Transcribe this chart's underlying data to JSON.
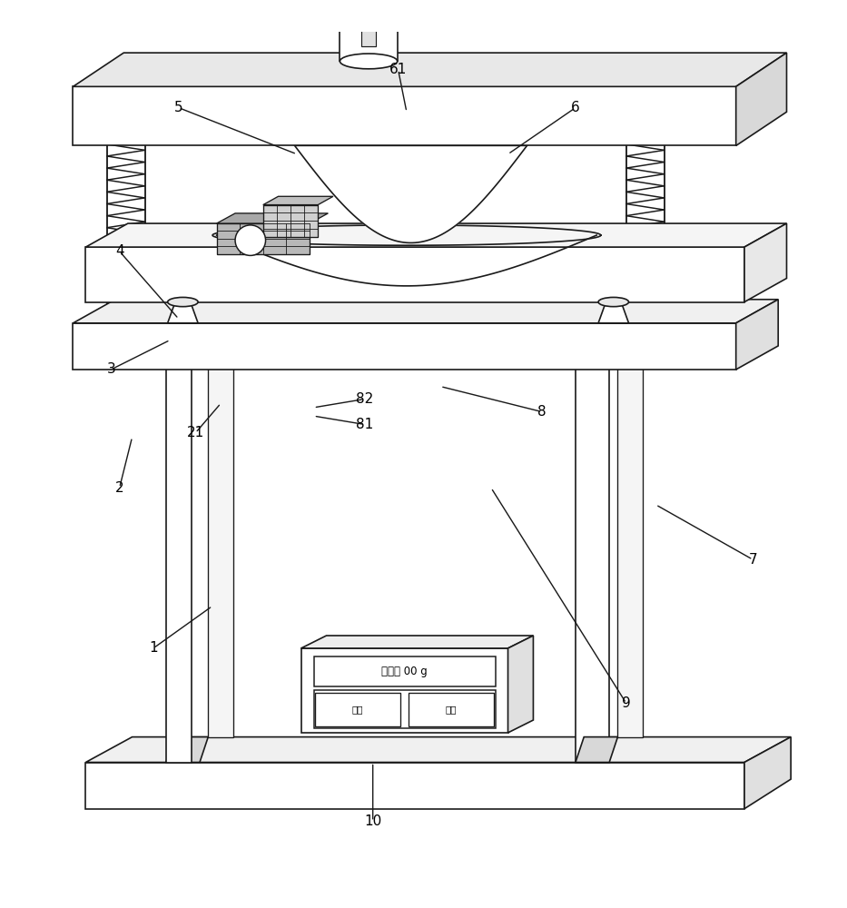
{
  "bg_color": "#ffffff",
  "line_color": "#1a1a1a",
  "line_width": 1.2,
  "display_text": {
    "pressure_line1": "压力： 00 g",
    "button_left": "上升",
    "button_right": "下降"
  },
  "annotations": [
    [
      "1",
      [
        0.18,
        0.27
      ],
      [
        0.25,
        0.32
      ]
    ],
    [
      "2",
      [
        0.14,
        0.46
      ],
      [
        0.155,
        0.52
      ]
    ],
    [
      "3",
      [
        0.13,
        0.6
      ],
      [
        0.2,
        0.635
      ]
    ],
    [
      "4",
      [
        0.14,
        0.74
      ],
      [
        0.21,
        0.66
      ]
    ],
    [
      "5",
      [
        0.21,
        0.91
      ],
      [
        0.35,
        0.855
      ]
    ],
    [
      "6",
      [
        0.68,
        0.91
      ],
      [
        0.6,
        0.855
      ]
    ],
    [
      "61",
      [
        0.47,
        0.955
      ],
      [
        0.48,
        0.905
      ]
    ],
    [
      "7",
      [
        0.89,
        0.375
      ],
      [
        0.775,
        0.44
      ]
    ],
    [
      "8",
      [
        0.64,
        0.55
      ],
      [
        0.52,
        0.58
      ]
    ],
    [
      "81",
      [
        0.43,
        0.535
      ],
      [
        0.37,
        0.545
      ]
    ],
    [
      "82",
      [
        0.43,
        0.565
      ],
      [
        0.37,
        0.555
      ]
    ],
    [
      "9",
      [
        0.74,
        0.205
      ],
      [
        0.58,
        0.46
      ]
    ],
    [
      "10",
      [
        0.44,
        0.065
      ],
      [
        0.44,
        0.135
      ]
    ],
    [
      "21",
      [
        0.23,
        0.525
      ],
      [
        0.26,
        0.56
      ]
    ]
  ]
}
